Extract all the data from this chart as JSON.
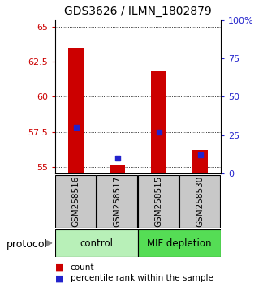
{
  "title": "GDS3626 / ILMN_1802879",
  "samples": [
    "GSM258516",
    "GSM258517",
    "GSM258515",
    "GSM258530"
  ],
  "count_values": [
    63.5,
    55.15,
    61.85,
    56.2
  ],
  "percentile_values": [
    30,
    10,
    27,
    12
  ],
  "ylim_left": [
    54.5,
    65.5
  ],
  "ylim_right": [
    0,
    100
  ],
  "yticks_left": [
    55,
    57.5,
    60,
    62.5,
    65
  ],
  "yticks_right": [
    0,
    25,
    50,
    75,
    100
  ],
  "bar_color": "#cc0000",
  "percentile_color": "#2222cc",
  "sample_box_color": "#c8c8c8",
  "ctrl_color": "#b8f0b8",
  "mif_color": "#55dd55",
  "legend_count": "count",
  "legend_percentile": "percentile rank within the sample",
  "protocol_label": "protocol"
}
